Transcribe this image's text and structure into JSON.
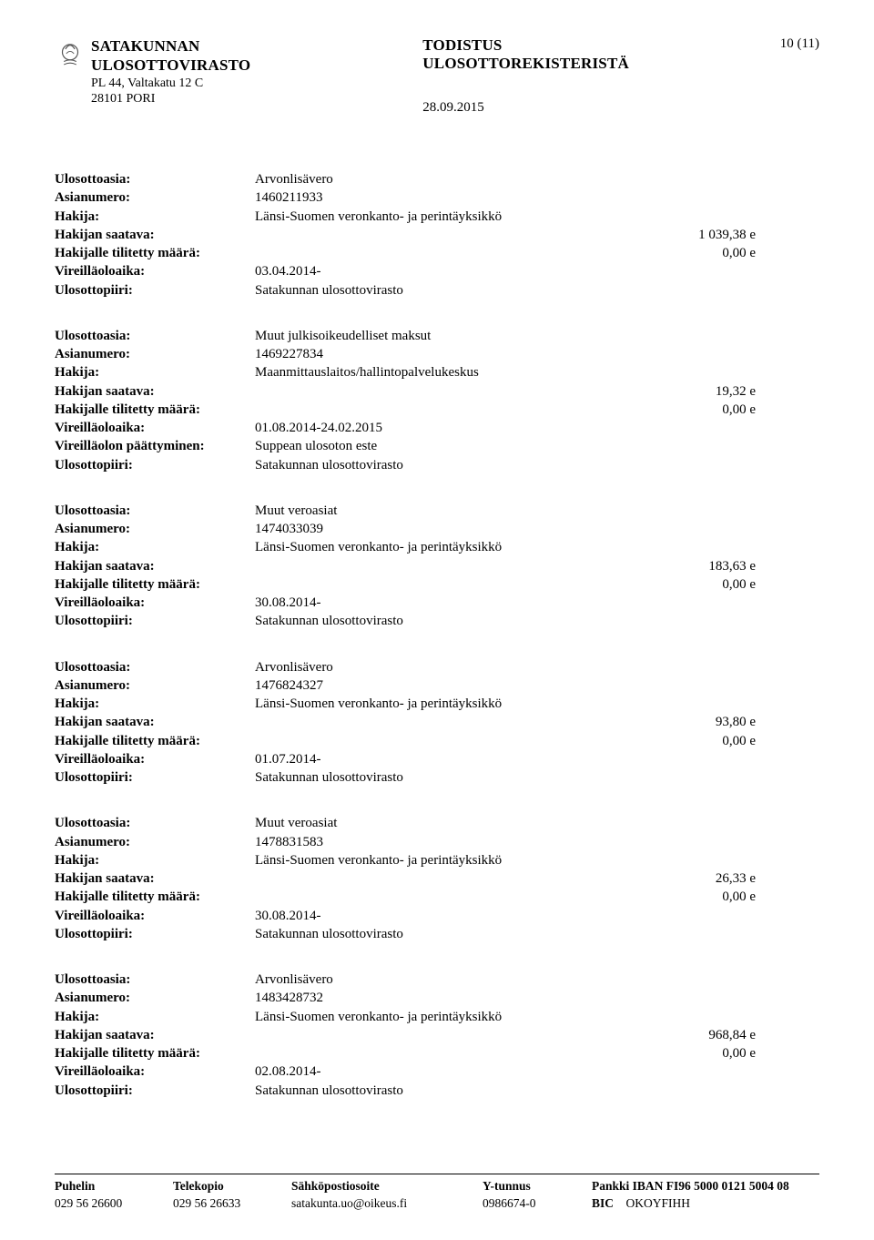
{
  "header": {
    "org_line1": "SATAKUNNAN",
    "org_line2": "ULOSOTTOVIRASTO",
    "addr_line1": "PL 44, Valtakatu 12 C",
    "addr_line2": "28101 PORI",
    "doc_title1": "TODISTUS",
    "doc_title2": "ULOSOTTOREKISTERISTÄ",
    "doc_date": "28.09.2015",
    "page_indicator": "10 (11)"
  },
  "labels": {
    "ulosottoasia": "Ulosottoasia:",
    "asianumero": "Asianumero:",
    "hakija": "Hakija:",
    "hakijan_saatava": "Hakijan saatava:",
    "hakijalle_tilitetty": "Hakijalle tilitetty määrä:",
    "vireillaoloaika": "Vireilläoloaika:",
    "vireillaolon_paattyminen": "Vireilläolon päättyminen:",
    "ulosottopiiri": "Ulosottopiiri:"
  },
  "cases": [
    {
      "ulosottoasia": "Arvonlisävero",
      "asianumero": "1460211933",
      "hakija": "Länsi-Suomen veronkanto- ja perintäyksikkö",
      "hakijan_saatava": "1 039,38 e",
      "hakijalle_tilitetty": "0,00 e",
      "vireillaoloaika": "03.04.2014-",
      "vireillaolon_paattyminen": "",
      "ulosottopiiri": "Satakunnan  ulosottovirasto"
    },
    {
      "ulosottoasia": "Muut julkisoikeudelliset maksut",
      "asianumero": "1469227834",
      "hakija": "Maanmittauslaitos/hallintopalvelukeskus",
      "hakijan_saatava": "19,32 e",
      "hakijalle_tilitetty": "0,00 e",
      "vireillaoloaika": "01.08.2014-24.02.2015",
      "vireillaolon_paattyminen": "Suppean ulosoton este",
      "ulosottopiiri": "Satakunnan  ulosottovirasto"
    },
    {
      "ulosottoasia": "Muut veroasiat",
      "asianumero": "1474033039",
      "hakija": "Länsi-Suomen veronkanto- ja perintäyksikkö",
      "hakijan_saatava": "183,63 e",
      "hakijalle_tilitetty": "0,00 e",
      "vireillaoloaika": "30.08.2014-",
      "vireillaolon_paattyminen": "",
      "ulosottopiiri": "Satakunnan  ulosottovirasto"
    },
    {
      "ulosottoasia": "Arvonlisävero",
      "asianumero": "1476824327",
      "hakija": "Länsi-Suomen veronkanto- ja perintäyksikkö",
      "hakijan_saatava": "93,80 e",
      "hakijalle_tilitetty": "0,00 e",
      "vireillaoloaika": "01.07.2014-",
      "vireillaolon_paattyminen": "",
      "ulosottopiiri": "Satakunnan  ulosottovirasto"
    },
    {
      "ulosottoasia": "Muut veroasiat",
      "asianumero": "1478831583",
      "hakija": "Länsi-Suomen veronkanto- ja perintäyksikkö",
      "hakijan_saatava": "26,33 e",
      "hakijalle_tilitetty": "0,00 e",
      "vireillaoloaika": "30.08.2014-",
      "vireillaolon_paattyminen": "",
      "ulosottopiiri": "Satakunnan  ulosottovirasto"
    },
    {
      "ulosottoasia": "Arvonlisävero",
      "asianumero": "1483428732",
      "hakija": "Länsi-Suomen veronkanto- ja perintäyksikkö",
      "hakijan_saatava": "968,84 e",
      "hakijalle_tilitetty": "0,00 e",
      "vireillaoloaika": "02.08.2014-",
      "vireillaolon_paattyminen": "",
      "ulosottopiiri": "Satakunnan  ulosottovirasto"
    }
  ],
  "footer": {
    "head": {
      "c1": "Puhelin",
      "c2": "Telekopio",
      "c3": "Sähköpostiosoite",
      "c4": "Y-tunnus",
      "c5": "Pankki IBAN FI96 5000 0121 5004 08"
    },
    "row": {
      "c1": "029 56 26600",
      "c2": "029 56 26633",
      "c3": "satakunta.uo@oikeus.fi",
      "c4": "0986674-0",
      "c5": "BIC    OKOYFIHH",
      "c5_label": "BIC",
      "c5_value": "OKOYFIHH"
    }
  }
}
